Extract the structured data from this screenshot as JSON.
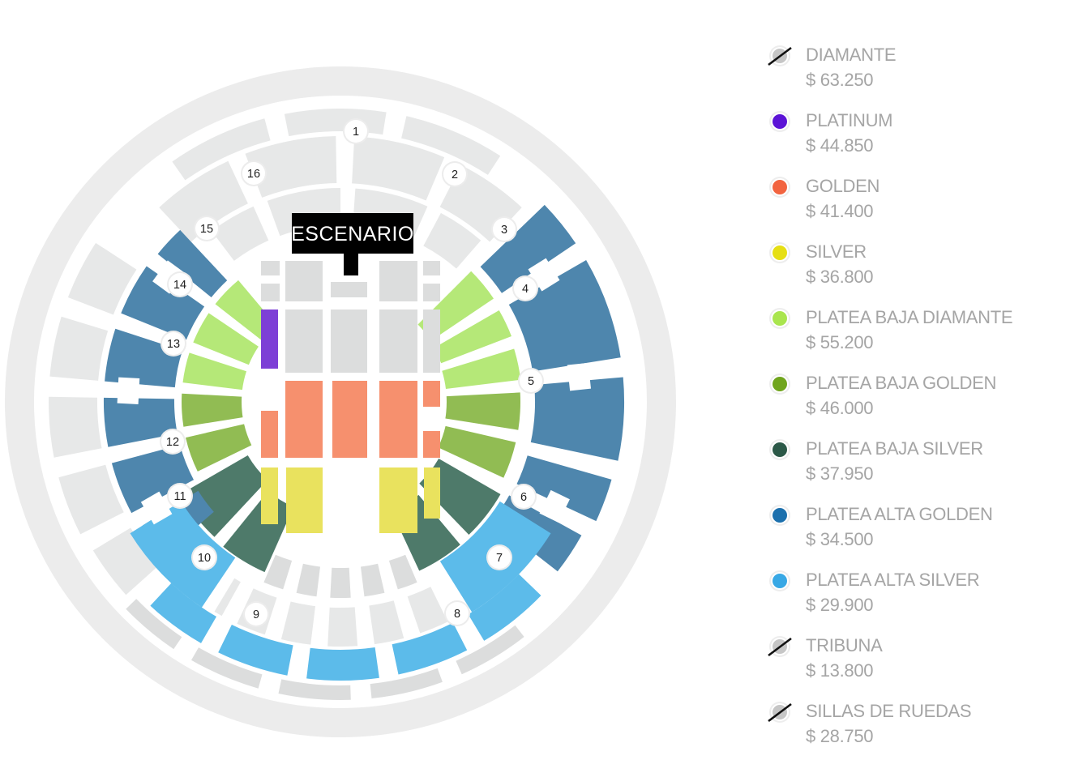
{
  "stage": {
    "label": "ESCENARIO",
    "bg": "#000000",
    "text_color": "#ffffff"
  },
  "legend": {
    "items": [
      {
        "name": "DIAMANTE",
        "price": "$ 63.250",
        "color": "#c6c6c6",
        "sold_out": true
      },
      {
        "name": "PLATINUM",
        "price": "$ 44.850",
        "color": "#5b13d6",
        "sold_out": false
      },
      {
        "name": "GOLDEN",
        "price": "$ 41.400",
        "color": "#f26440",
        "sold_out": false
      },
      {
        "name": "SILVER",
        "price": "$ 36.800",
        "color": "#e6df14",
        "sold_out": false
      },
      {
        "name": "PLATEA BAJA DIAMANTE",
        "price": "$ 55.200",
        "color": "#a9e54e",
        "sold_out": false
      },
      {
        "name": "PLATEA BAJA GOLDEN",
        "price": "$ 46.000",
        "color": "#70a51d",
        "sold_out": false
      },
      {
        "name": "PLATEA BAJA SILVER",
        "price": "$ 37.950",
        "color": "#2b5847",
        "sold_out": false
      },
      {
        "name": "PLATEA ALTA GOLDEN",
        "price": "$ 34.500",
        "color": "#1c70ad",
        "sold_out": false
      },
      {
        "name": "PLATEA ALTA SILVER",
        "price": "$ 29.900",
        "color": "#38a8e5",
        "sold_out": false
      },
      {
        "name": "TRIBUNA",
        "price": "$ 13.800",
        "color": "#c6c6c6",
        "sold_out": true
      },
      {
        "name": "SILLAS DE RUEDAS",
        "price": "$ 28.750",
        "color": "#c6c6c6",
        "sold_out": true
      }
    ]
  },
  "map": {
    "section_numbers": [
      "1",
      "2",
      "3",
      "4",
      "5",
      "6",
      "7",
      "8",
      "9",
      "10",
      "11",
      "12",
      "13",
      "14",
      "15",
      "16"
    ],
    "colors": {
      "platinum": "#7d3fd6",
      "golden": "#f6906e",
      "silver": "#e9e25e",
      "platea_baja_diamante": "#b5e878",
      "platea_baja_golden": "#91bc53",
      "platea_baja_silver": "#4e7a6a",
      "platea_alta_golden": "#4e86ad",
      "platea_alta_silver": "#5cbbea",
      "disabled": "#dcdddd",
      "disabled_light": "#e7e8e8"
    }
  }
}
